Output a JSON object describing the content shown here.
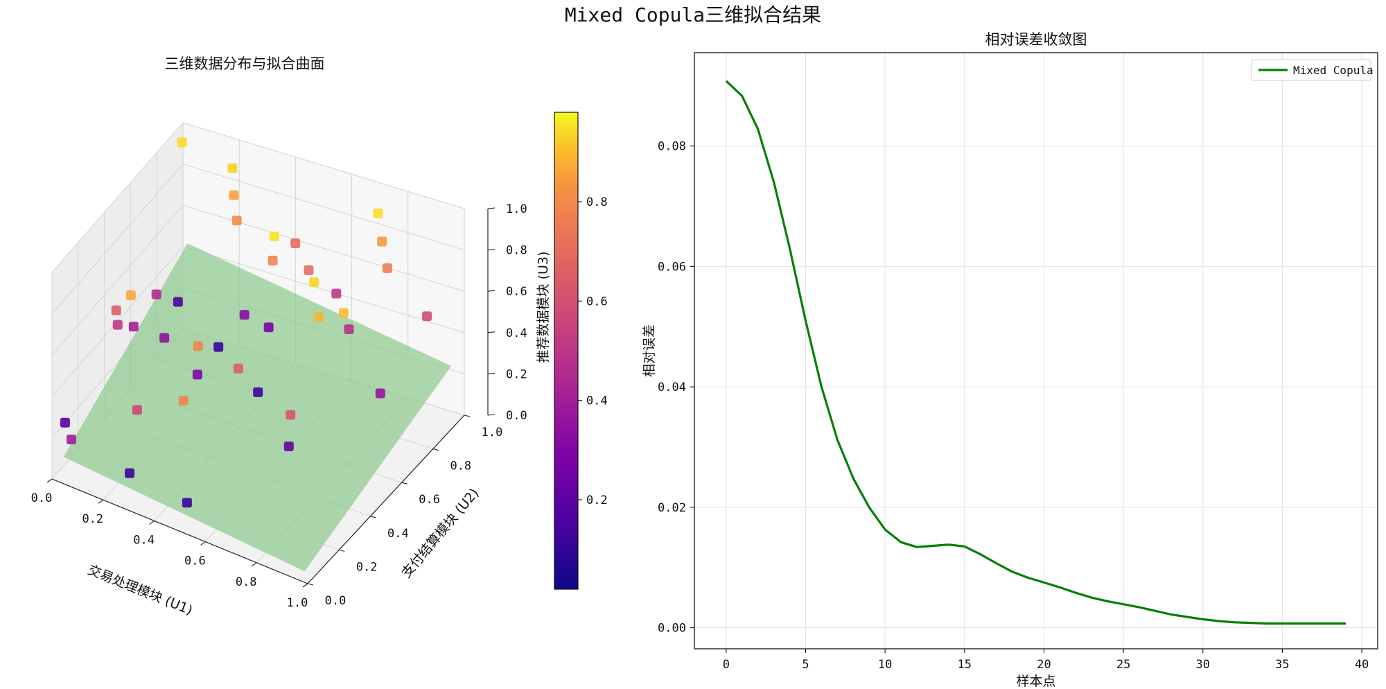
{
  "figure": {
    "title": "Mixed Copula三维拟合结果"
  },
  "chart_data": [
    {
      "type": "scatter",
      "projection": "3d",
      "title": "三维数据分布与拟合曲面",
      "xlabel": "交易处理模块 (U1)",
      "ylabel": "支付结算模块 (U2)",
      "zlabel": "推荐数据模块 (U3)",
      "xlim": [
        0,
        1
      ],
      "ylim": [
        0,
        1
      ],
      "zlim": [
        0,
        1
      ],
      "xticks": [
        "0.0",
        "0.2",
        "0.4",
        "0.6",
        "0.8",
        "1.0"
      ],
      "yticks": [
        "0.0",
        "0.2",
        "0.4",
        "0.6",
        "0.8",
        "1.0"
      ],
      "zticks": [
        "0.0",
        "0.2",
        "0.4",
        "0.6",
        "0.8",
        "1.0"
      ],
      "colormap": "plasma",
      "colorbar": {
        "ticks": [
          "0.2",
          "0.4",
          "0.6",
          "0.8"
        ],
        "range": [
          0.02,
          0.98
        ]
      },
      "grid": true,
      "surface": {
        "color": "#8cc98c",
        "alpha": 0.7,
        "corners_z": [
          0.1,
          0.02,
          0.45,
          0.25
        ]
      },
      "points": [
        {
          "x": 0.02,
          "y": 0.95,
          "z": 0.95,
          "c": 0.93
        },
        {
          "x": 0.2,
          "y": 0.95,
          "z": 0.9,
          "c": 0.91
        },
        {
          "x": 0.22,
          "y": 0.92,
          "z": 0.8,
          "c": 0.78
        },
        {
          "x": 0.25,
          "y": 0.88,
          "z": 0.72,
          "c": 0.72
        },
        {
          "x": 0.4,
          "y": 0.85,
          "z": 0.73,
          "c": 0.95
        },
        {
          "x": 0.45,
          "y": 0.9,
          "z": 0.68,
          "c": 0.62
        },
        {
          "x": 0.42,
          "y": 0.8,
          "z": 0.66,
          "c": 0.7
        },
        {
          "x": 0.55,
          "y": 0.8,
          "z": 0.67,
          "c": 0.62
        },
        {
          "x": 0.58,
          "y": 0.78,
          "z": 0.64,
          "c": 0.92
        },
        {
          "x": 0.65,
          "y": 0.8,
          "z": 0.6,
          "c": 0.45
        },
        {
          "x": 0.72,
          "y": 0.95,
          "z": 0.9,
          "c": 0.93
        },
        {
          "x": 0.75,
          "y": 0.92,
          "z": 0.8,
          "c": 0.76
        },
        {
          "x": 0.78,
          "y": 0.9,
          "z": 0.7,
          "c": 0.68
        },
        {
          "x": 0.65,
          "y": 0.68,
          "z": 0.58,
          "c": 0.83
        },
        {
          "x": 0.72,
          "y": 0.72,
          "z": 0.6,
          "c": 0.85
        },
        {
          "x": 0.75,
          "y": 0.7,
          "z": 0.55,
          "c": 0.42
        },
        {
          "x": 0.95,
          "y": 0.85,
          "z": 0.58,
          "c": 0.52
        },
        {
          "x": 0.42,
          "y": 0.6,
          "z": 0.55,
          "c": 0.28
        },
        {
          "x": 0.52,
          "y": 0.58,
          "z": 0.55,
          "c": 0.24
        },
        {
          "x": 0.2,
          "y": 0.55,
          "z": 0.55,
          "c": 0.12
        },
        {
          "x": 0.05,
          "y": 0.5,
          "z": 0.55,
          "c": 0.8
        },
        {
          "x": 0.12,
          "y": 0.55,
          "z": 0.55,
          "c": 0.4
        },
        {
          "x": 0.02,
          "y": 0.45,
          "z": 0.5,
          "c": 0.58
        },
        {
          "x": 0.05,
          "y": 0.4,
          "z": 0.48,
          "c": 0.45
        },
        {
          "x": 0.1,
          "y": 0.42,
          "z": 0.48,
          "c": 0.36
        },
        {
          "x": 0.2,
          "y": 0.45,
          "z": 0.45,
          "c": 0.3
        },
        {
          "x": 0.3,
          "y": 0.5,
          "z": 0.42,
          "c": 0.7
        },
        {
          "x": 0.35,
          "y": 0.55,
          "z": 0.4,
          "c": 0.1
        },
        {
          "x": 0.45,
          "y": 0.5,
          "z": 0.38,
          "c": 0.58
        },
        {
          "x": 0.35,
          "y": 0.4,
          "z": 0.38,
          "c": 0.25
        },
        {
          "x": 0.35,
          "y": 0.3,
          "z": 0.33,
          "c": 0.7
        },
        {
          "x": 0.55,
          "y": 0.45,
          "z": 0.35,
          "c": 0.1
        },
        {
          "x": 0.95,
          "y": 0.55,
          "z": 0.45,
          "c": 0.32
        },
        {
          "x": 0.7,
          "y": 0.4,
          "z": 0.35,
          "c": 0.55
        },
        {
          "x": 0.2,
          "y": 0.25,
          "z": 0.25,
          "c": 0.5
        },
        {
          "x": 0.0,
          "y": 0.1,
          "z": 0.2,
          "c": 0.16
        },
        {
          "x": 0.05,
          "y": 0.05,
          "z": 0.18,
          "c": 0.35
        },
        {
          "x": 0.25,
          "y": 0.1,
          "z": 0.08,
          "c": 0.1
        },
        {
          "x": 0.75,
          "y": 0.3,
          "z": 0.3,
          "c": 0.18
        },
        {
          "x": 0.5,
          "y": 0.05,
          "z": 0.1,
          "c": 0.08
        }
      ]
    },
    {
      "type": "line",
      "title": "相对误差收敛图",
      "xlabel": "样本点",
      "ylabel": "相对误差",
      "xlim": [
        -2,
        41
      ],
      "ylim": [
        -0.0035,
        0.0955
      ],
      "xticks": [
        0,
        5,
        10,
        15,
        20,
        25,
        30,
        35,
        40
      ],
      "yticks": [
        0.0,
        0.02,
        0.04,
        0.06,
        0.08
      ],
      "ytick_labels": [
        "0.00",
        "0.02",
        "0.04",
        "0.06",
        "0.08"
      ],
      "grid": true,
      "legend_position": "top-right",
      "series": [
        {
          "name": "Mixed Copula",
          "color": "#008000",
          "x": [
            0,
            1,
            2,
            3,
            4,
            5,
            6,
            7,
            8,
            9,
            10,
            11,
            12,
            13,
            14,
            15,
            16,
            17,
            18,
            19,
            20,
            21,
            22,
            23,
            24,
            25,
            26,
            27,
            28,
            29,
            30,
            31,
            32,
            33,
            34,
            35,
            36,
            37,
            38,
            39
          ],
          "y": [
            0.0908,
            0.0883,
            0.0828,
            0.074,
            0.063,
            0.051,
            0.04,
            0.0312,
            0.0248,
            0.02,
            0.0163,
            0.0142,
            0.0134,
            0.0136,
            0.0138,
            0.0135,
            0.0122,
            0.0107,
            0.0093,
            0.0083,
            0.0075,
            0.0067,
            0.0058,
            0.005,
            0.0044,
            0.0039,
            0.0034,
            0.0028,
            0.0022,
            0.0018,
            0.0014,
            0.0011,
            0.0009,
            0.0008,
            0.0007,
            0.0007,
            0.0007,
            0.0007,
            0.0007,
            0.0007
          ]
        }
      ]
    }
  ]
}
